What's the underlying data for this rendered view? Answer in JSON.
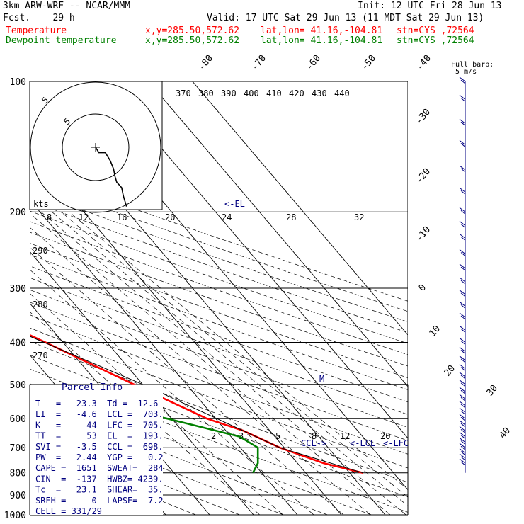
{
  "header": {
    "model": "3km ARW-WRF -- NCAR/MMM",
    "init": "Init: 12 UTC Fri 28 Jun 13",
    "fcst": "Fcst.    29 h",
    "valid": "Valid: 17 UTC Sat 29 Jun 13 (11 MDT Sat 29 Jun 13)",
    "temp_label": "Temperature",
    "dew_label": "Dewpoint temperature",
    "xy": "x,y=285.50,572.62",
    "latlon": "lat,lon= 41.16,-104.81",
    "stn": "stn=CYS ,72564"
  },
  "chart_data": {
    "type": "line",
    "pressure_levels": [
      100,
      200,
      300,
      400,
      500,
      600,
      700,
      800,
      900,
      1000
    ],
    "isotherm_labels": [
      "-80",
      "-70",
      "-60",
      "-50",
      "-40",
      "-30",
      "-20",
      "-10",
      "0",
      "10",
      "20",
      "30",
      "40"
    ],
    "theta_labels": [
      "370",
      "380",
      "390",
      "400",
      "410",
      "420",
      "430",
      "440"
    ],
    "mixing_ratio_labels_upper": [
      "8",
      "12",
      "16",
      "20",
      "24",
      "28",
      "32"
    ],
    "mixing_ratio_labels_lower": [
      "2",
      "3",
      "5",
      "8",
      "12",
      "20"
    ],
    "dry_adiabat_labels": [
      "290",
      "280",
      "270"
    ],
    "series": [
      {
        "name": "Temperature",
        "color": "#ff0000",
        "points": [
          [
            100,
            -67
          ],
          [
            150,
            -62
          ],
          [
            200,
            -58
          ],
          [
            250,
            -50
          ],
          [
            300,
            -40
          ],
          [
            400,
            -24
          ],
          [
            500,
            -12
          ],
          [
            600,
            -2
          ],
          [
            640,
            4
          ],
          [
            700,
            9
          ],
          [
            760,
            16
          ],
          [
            800,
            23
          ]
        ]
      },
      {
        "name": "Dewpoint temperature",
        "color": "#008000",
        "points": [
          [
            100,
            -77
          ],
          [
            150,
            -79
          ],
          [
            200,
            -78
          ],
          [
            250,
            -74
          ],
          [
            300,
            -70
          ],
          [
            350,
            -66
          ],
          [
            400,
            -58
          ],
          [
            450,
            -55
          ],
          [
            500,
            -44
          ],
          [
            560,
            -23
          ],
          [
            600,
            -11
          ],
          [
            660,
            2
          ],
          [
            700,
            4
          ],
          [
            760,
            1
          ],
          [
            800,
            -2
          ]
        ]
      }
    ],
    "annotations": {
      "el": "<-EL",
      "lcl": "<-LCL",
      "lfc": "<-LFC",
      "ccl": "CCL->",
      "parcel_marker": "M"
    },
    "hodograph": {
      "units_label": "kts",
      "ring_labels": [
        "5",
        "5"
      ],
      "ring_speeds": [
        10,
        20
      ],
      "trace": [
        [
          0,
          0
        ],
        [
          2,
          -2
        ],
        [
          6,
          -2
        ],
        [
          9,
          -5
        ],
        [
          11,
          -8
        ],
        [
          12,
          -11
        ],
        [
          13,
          -13
        ],
        [
          16,
          -15
        ],
        [
          17,
          -18
        ],
        [
          18,
          -20
        ],
        [
          19,
          -22
        ]
      ]
    },
    "wind_legend": {
      "full_barb": "Full barb:",
      "speed": "5 m/s"
    },
    "barb_levels": [
      100,
      110,
      125,
      140,
      160,
      180,
      200,
      215,
      230,
      250,
      270,
      290,
      310,
      330,
      350,
      375,
      400,
      420,
      440,
      460,
      480,
      500,
      520,
      540,
      560,
      580,
      600,
      620,
      640,
      660,
      680,
      700,
      720,
      740,
      760
    ]
  },
  "parcel_info": {
    "title": "Parcel Info",
    "rows": [
      "T   =   23.3  Td =  12.6",
      "LI  =   -4.6  LCL =  703.",
      "K   =     44  LFC =  705.",
      "TT  =     53  EL  =  193.",
      "SVI =   -3.5  CCL =  698.",
      "PW  =   2.44  YGP =   0.2",
      "CAPE =  1651  SWEAT=  284",
      "CIN  =  -137  HWBZ= 4239.",
      "Tc  =   23.1  SHEAR=  35.",
      "SREH =     0  LAPSE=  7.2",
      "CELL = 331/29"
    ]
  }
}
